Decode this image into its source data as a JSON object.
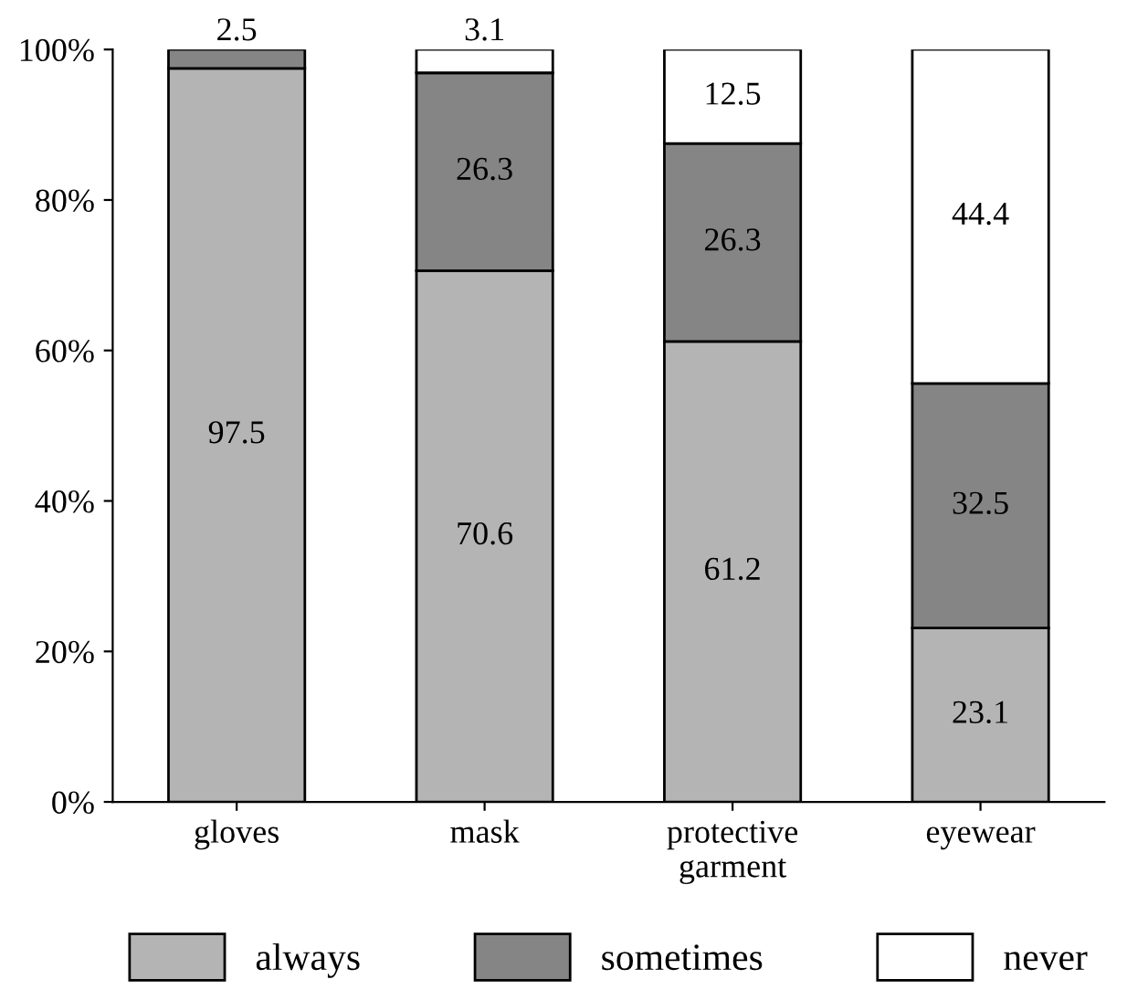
{
  "chart_data": {
    "type": "bar",
    "stacked": true,
    "categories": [
      "gloves",
      "mask",
      "protective\ngarment",
      "eyewear"
    ],
    "series": [
      {
        "name": "always",
        "color": "#b4b4b4",
        "values": [
          97.5,
          70.6,
          61.2,
          23.1
        ],
        "value_labels": [
          "97.5",
          "70.6",
          "61.2",
          "23.1"
        ]
      },
      {
        "name": "sometimes",
        "color": "#858585",
        "values": [
          2.5,
          26.3,
          26.3,
          32.5
        ],
        "value_labels": [
          "2.5",
          "26.3",
          "26.3",
          "32.5"
        ]
      },
      {
        "name": "never",
        "color": "#ffffff",
        "values": [
          0,
          3.1,
          12.5,
          44.4
        ],
        "value_labels": [
          null,
          "3.1",
          "12.5",
          "44.4"
        ]
      }
    ],
    "ylim": [
      0,
      100
    ],
    "yticks": [
      {
        "value": 0,
        "label": "0%"
      },
      {
        "value": 20,
        "label": "20%"
      },
      {
        "value": 40,
        "label": "40%"
      },
      {
        "value": 60,
        "label": "60%"
      },
      {
        "value": 80,
        "label": "80%"
      },
      {
        "value": 100,
        "label": "100%"
      }
    ],
    "grid": false,
    "legend": "bottom"
  }
}
